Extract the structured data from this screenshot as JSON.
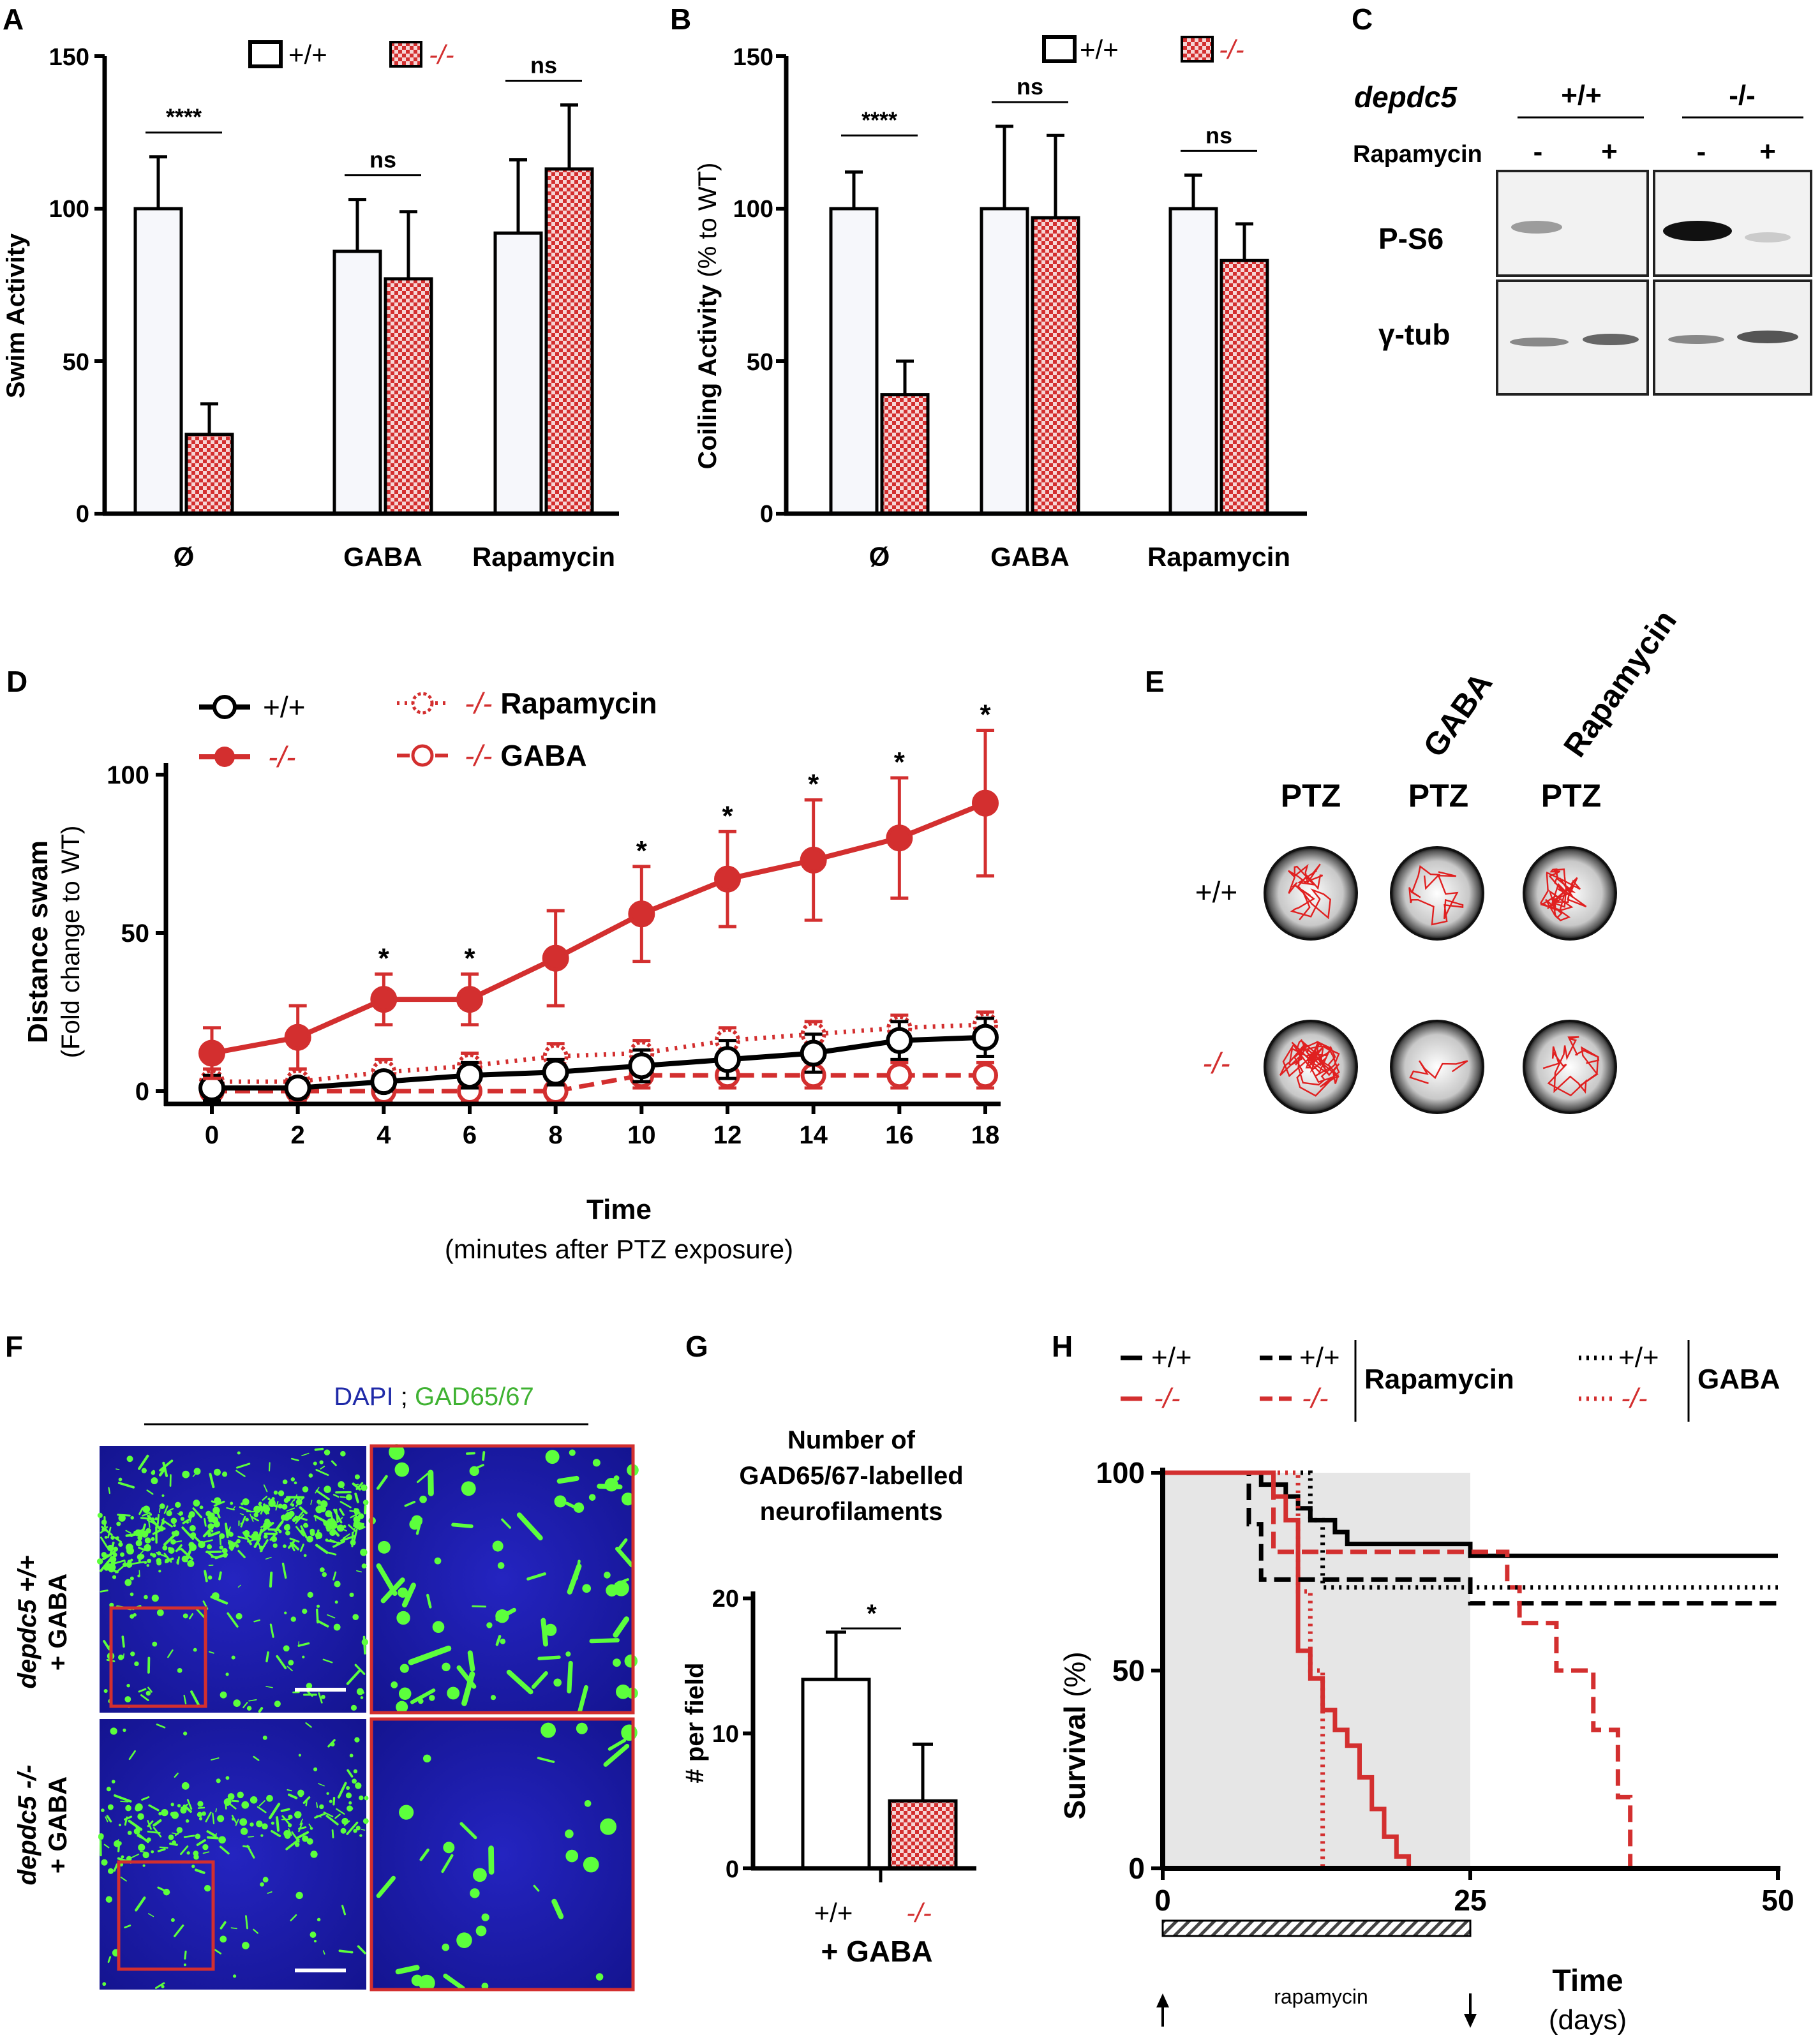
{
  "colors": {
    "wt": "#000000",
    "ko": "#d32f2f",
    "micro_bg": "#1a1aa8",
    "micro_fg": "#5cff3c",
    "shade": "#e6e6e6"
  },
  "panel_a": {
    "letter": "A",
    "legend_wt": "+/+",
    "legend_ko": "-/-",
    "chart_data": {
      "type": "bar",
      "categories": [
        "Ø",
        "GABA",
        "Rapamycin"
      ],
      "series": [
        {
          "name": "+/+",
          "values": [
            100,
            86,
            92
          ],
          "errors": [
            17,
            17,
            24
          ]
        },
        {
          "name": "-/-",
          "values": [
            26,
            77,
            113
          ],
          "errors": [
            10,
            22,
            21
          ]
        }
      ],
      "ylabel": "Swim Activity",
      "yticks": [
        "0",
        "50",
        "100",
        "150"
      ],
      "ylim": [
        0,
        150
      ],
      "significance": [
        "****",
        "ns",
        "ns"
      ]
    }
  },
  "panel_b": {
    "letter": "B",
    "legend_wt": "+/+",
    "legend_ko": "-/-",
    "chart_data": {
      "type": "bar",
      "categories": [
        "Ø",
        "GABA",
        "Rapamycin"
      ],
      "series": [
        {
          "name": "+/+",
          "values": [
            100,
            100,
            100
          ],
          "errors": [
            12,
            27,
            11
          ]
        },
        {
          "name": "-/-",
          "values": [
            39,
            97,
            83
          ],
          "errors": [
            11,
            27,
            12
          ]
        }
      ],
      "ylabel_main": "Coiling Activity",
      "ylabel_unit": "(% to WT)",
      "yticks": [
        "0",
        "50",
        "100",
        "150"
      ],
      "ylim": [
        0,
        150
      ],
      "significance": [
        "****",
        "ns",
        "ns"
      ]
    }
  },
  "panel_c": {
    "letter": "C",
    "gene": "depdc5",
    "genotype_wt": "+/+",
    "genotype_ko": "-/-",
    "treatment": "Rapamycin",
    "signs": [
      "-",
      "+",
      "-",
      "+"
    ],
    "row1": "P-S6",
    "row2": "γ-tub"
  },
  "panel_d": {
    "letter": "D",
    "legend": {
      "wt": "+/+",
      "ko": "-/-",
      "ko_rapa_g": "-/-",
      "ko_rapa_t": "Rapamycin",
      "ko_gaba_g": "-/-",
      "ko_gaba_t": "GABA"
    },
    "chart_data": {
      "type": "line",
      "x": [
        0,
        2,
        4,
        6,
        8,
        10,
        12,
        14,
        16,
        18
      ],
      "xticks": [
        "0",
        "2",
        "4",
        "6",
        "8",
        "10",
        "12",
        "14",
        "16",
        "18"
      ],
      "yticks": [
        "0",
        "50",
        "100"
      ],
      "ylim": [
        0,
        100
      ],
      "series": [
        {
          "name": "+/+",
          "values": [
            1,
            1,
            3,
            5,
            6,
            8,
            10,
            12,
            16,
            17
          ],
          "errors": [
            4,
            3,
            3,
            4,
            4,
            5,
            6,
            6,
            6,
            6
          ],
          "style": "solid-black-open"
        },
        {
          "name": "-/-",
          "values": [
            12,
            17,
            29,
            29,
            42,
            56,
            67,
            73,
            80,
            91
          ],
          "errors": [
            8,
            10,
            8,
            8,
            15,
            15,
            15,
            19,
            19,
            23
          ],
          "style": "solid-red-filled"
        },
        {
          "name": "-/- Rapamycin",
          "values": [
            3,
            3,
            6,
            8,
            11,
            12,
            16,
            18,
            20,
            21
          ],
          "errors": [
            4,
            4,
            4,
            4,
            4,
            4,
            4,
            4,
            4,
            4
          ],
          "style": "dotted-red-open"
        },
        {
          "name": "-/- GABA",
          "values": [
            0,
            0,
            0,
            0,
            0,
            5,
            5,
            5,
            5,
            5
          ],
          "errors": [
            3,
            3,
            3,
            3,
            3,
            4,
            4,
            4,
            4,
            4
          ],
          "style": "dashed-red-open"
        }
      ],
      "stars": [
        "",
        "",
        "*",
        "*",
        "",
        "*",
        "*",
        "*",
        "*",
        "*"
      ],
      "ylabel_main": "Distance swam",
      "ylabel_unit": "(Fold change to WT)",
      "xlabel_main": "Time",
      "xlabel_unit": "(minutes after PTZ exposure)"
    }
  },
  "panel_e": {
    "letter": "E",
    "col_top": [
      "",
      "GABA",
      "Rapamycin"
    ],
    "col_label": "PTZ",
    "row_wt": "+/+",
    "row_ko": "-/-"
  },
  "panel_f": {
    "letter": "F",
    "stain_a": "DAPI",
    "stain_sep": ";",
    "stain_b": "GAD65/67",
    "row1_gene": "depdc5 +/+",
    "row1_treat": "+ GABA",
    "row2_gene": "depdc5 -/-",
    "row2_treat": "+ GABA"
  },
  "panel_g": {
    "letter": "G",
    "title_lines": [
      "Number of",
      "GAD65/67-labelled",
      "neurofilaments"
    ],
    "chart_data": {
      "type": "bar",
      "categories": [
        "+/+",
        "-/-"
      ],
      "values": [
        14,
        5
      ],
      "errors": [
        3.5,
        4.2
      ],
      "ylabel": "# per field",
      "yticks": [
        "0",
        "10",
        "20"
      ],
      "ylim": [
        0,
        20
      ],
      "significance": "*",
      "xgroup": "+ GABA"
    }
  },
  "panel_h": {
    "letter": "H",
    "legend": {
      "wt": "+/+",
      "ko": "-/-",
      "rapa": "Rapamycin",
      "gaba": "GABA"
    },
    "chart_data": {
      "type": "line",
      "step": true,
      "xlim": [
        0,
        50
      ],
      "ylim": [
        0,
        100
      ],
      "xticks": [
        "0",
        "25",
        "50"
      ],
      "yticks": [
        "0",
        "50",
        "100"
      ],
      "treatment_window": [
        0,
        25
      ],
      "treatment_label": "rapamycin",
      "series": [
        {
          "name": "+/+",
          "style": "solid-black",
          "points": [
            [
              0,
              100
            ],
            [
              8,
              100
            ],
            [
              8,
              97
            ],
            [
              10,
              97
            ],
            [
              10,
              94
            ],
            [
              11,
              94
            ],
            [
              11,
              91
            ],
            [
              12,
              91
            ],
            [
              12,
              88
            ],
            [
              14,
              88
            ],
            [
              14,
              85
            ],
            [
              15,
              85
            ],
            [
              15,
              82
            ],
            [
              25,
              82
            ],
            [
              25,
              79
            ],
            [
              50,
              79
            ]
          ]
        },
        {
          "name": "-/-",
          "style": "solid-red",
          "points": [
            [
              0,
              100
            ],
            [
              9,
              100
            ],
            [
              9,
              94
            ],
            [
              10,
              94
            ],
            [
              10,
              88
            ],
            [
              11,
              88
            ],
            [
              11,
              55
            ],
            [
              12,
              55
            ],
            [
              12,
              48
            ],
            [
              13,
              48
            ],
            [
              13,
              40
            ],
            [
              14,
              40
            ],
            [
              14,
              35
            ],
            [
              15,
              35
            ],
            [
              15,
              31
            ],
            [
              16,
              31
            ],
            [
              16,
              23
            ],
            [
              17,
              23
            ],
            [
              17,
              15
            ],
            [
              18,
              15
            ],
            [
              18,
              8
            ],
            [
              19,
              8
            ],
            [
              19,
              3
            ],
            [
              20,
              3
            ],
            [
              20,
              0
            ]
          ]
        },
        {
          "name": "+/+ Rapamycin",
          "style": "dashed-black",
          "points": [
            [
              0,
              100
            ],
            [
              7,
              100
            ],
            [
              7,
              87
            ],
            [
              8,
              87
            ],
            [
              8,
              73
            ],
            [
              25,
              73
            ],
            [
              25,
              67
            ],
            [
              50,
              67
            ]
          ]
        },
        {
          "name": "-/- Rapamycin",
          "style": "dashed-red",
          "points": [
            [
              0,
              100
            ],
            [
              9,
              100
            ],
            [
              9,
              80
            ],
            [
              28,
              80
            ],
            [
              28,
              71
            ],
            [
              29,
              71
            ],
            [
              29,
              62
            ],
            [
              32,
              62
            ],
            [
              32,
              50
            ],
            [
              35,
              50
            ],
            [
              35,
              35
            ],
            [
              37,
              35
            ],
            [
              37,
              18
            ],
            [
              38,
              18
            ],
            [
              38,
              0
            ]
          ]
        },
        {
          "name": "+/+ GABA",
          "style": "dotted-black",
          "points": [
            [
              0,
              100
            ],
            [
              12,
              100
            ],
            [
              12,
              88
            ],
            [
              13,
              88
            ],
            [
              13,
              71
            ],
            [
              50,
              71
            ]
          ]
        },
        {
          "name": "-/- GABA",
          "style": "dotted-red",
          "points": [
            [
              0,
              100
            ],
            [
              11,
              100
            ],
            [
              11,
              70
            ],
            [
              12,
              70
            ],
            [
              12,
              50
            ],
            [
              13,
              50
            ],
            [
              13,
              0
            ]
          ]
        }
      ],
      "ylabel_main": "Survival",
      "ylabel_unit": "(%)",
      "xlabel_main": "Time",
      "xlabel_unit": "(days)"
    }
  }
}
